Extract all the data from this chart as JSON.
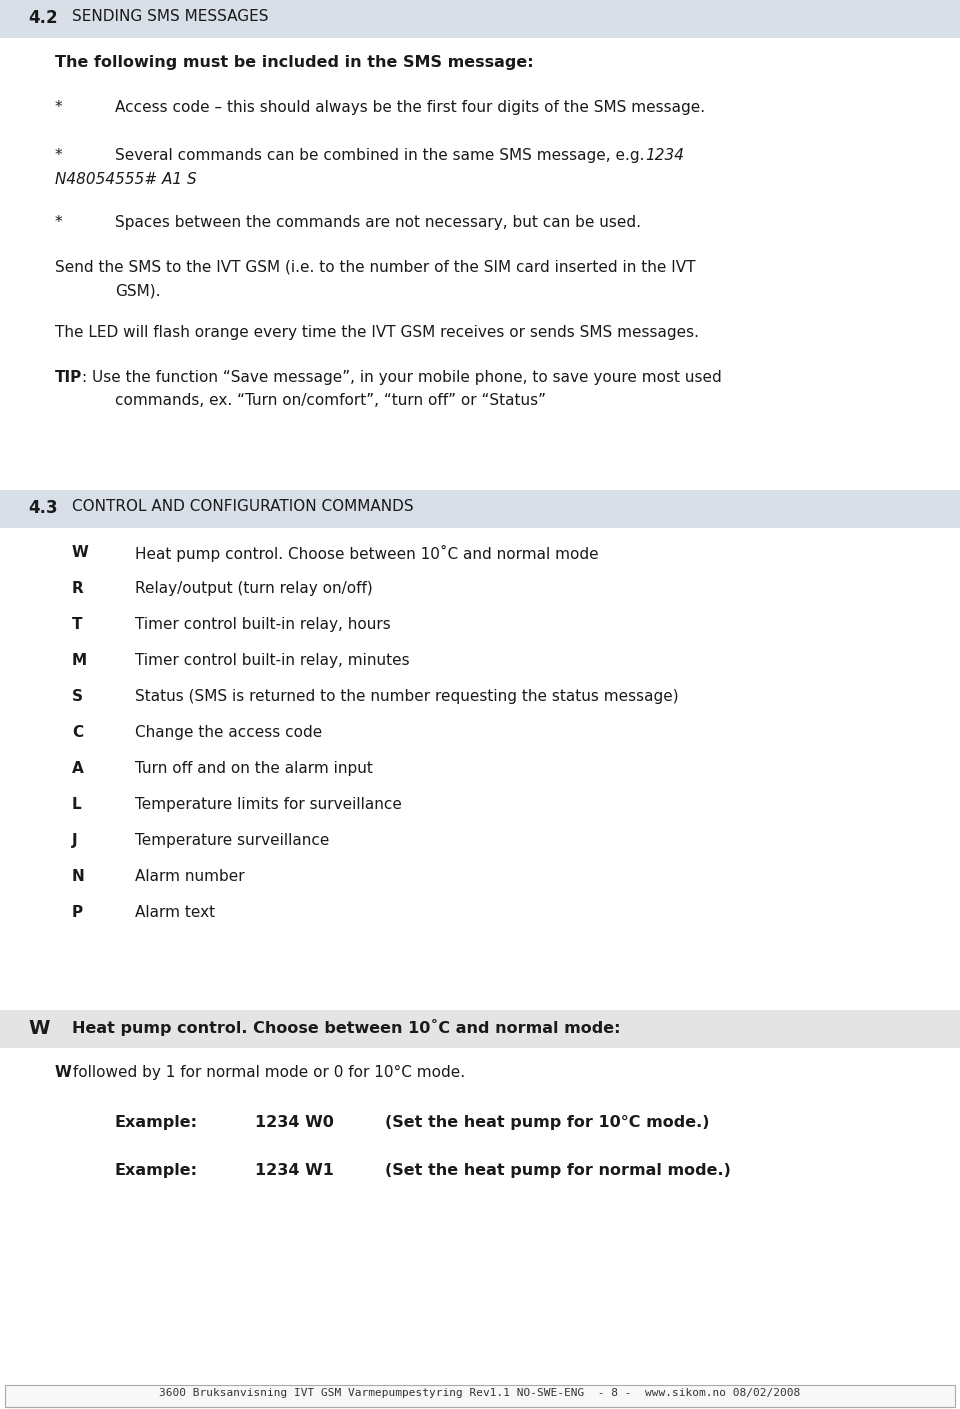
{
  "page_bg": "#ffffff",
  "header_bg": "#d8dfe8",
  "section_w_bg": "#e4e4e4",
  "footer_border": "#aaaaaa",
  "text_color": "#1a1a1a",
  "section42_number": "4.2",
  "section42_title": "SENDING SMS MESSAGES",
  "bold_line": "The following must be included in the SMS message:",
  "bullet1": "Access code – this should always be the first four digits of the SMS message.",
  "bullet2_line1": "Several commands can be combined in the same SMS message, e.g. ",
  "bullet2_italic": "1234",
  "bullet2_line2_italic": "N48054555# A1 S",
  "bullet3": "Spaces between the commands are not necessary, but can be used.",
  "para1_line1": "Send the SMS to the IVT GSM (i.e. to the number of the SIM card inserted in the IVT",
  "para1_line2": "GSM).",
  "para2": "The LED will flash orange every time the IVT GSM receives or sends SMS messages.",
  "tip_bold": "TIP",
  "tip_colon": ": Use the function “Save message”, in your mobile phone, to save youre most used",
  "tip_line2": "commands, ex. “Turn on/comfort”, “turn off” or “Status”",
  "section43_number": "4.3",
  "section43_title": "CONTROL AND CONFIGURATION COMMANDS",
  "commands": [
    [
      "W",
      "Heat pump control. Choose between 10˚C and normal mode"
    ],
    [
      "R",
      "Relay/output (turn relay on/off)"
    ],
    [
      "T",
      "Timer control built-in relay, hours"
    ],
    [
      "M",
      "Timer control built-in relay, minutes"
    ],
    [
      "S",
      "Status (SMS is returned to the number requesting the status message)"
    ],
    [
      "C",
      "Change the access code"
    ],
    [
      "A",
      "Turn off and on the alarm input"
    ],
    [
      "L",
      "Temperature limits for surveillance"
    ],
    [
      "J",
      "Temperature surveillance"
    ],
    [
      "N",
      "Alarm number"
    ],
    [
      "P",
      "Alarm text"
    ]
  ],
  "section_w_letter": "W",
  "section_w_heading": "Heat pump control. Choose between 10˚C and normal mode:",
  "w_desc_bold": "W",
  "w_desc_rest": " followed by 1 for normal mode or 0 for 10°C mode.",
  "ex1_label": "Example:",
  "ex1_cmd": "1234 W0",
  "ex1_desc": "(Set the heat pump for 10°C mode.)",
  "ex2_label": "Example:",
  "ex2_cmd": "1234 W1",
  "ex2_desc": "(Set the heat pump for normal mode.)",
  "footer_text": "3600 Bruksanvisning IVT GSM Varmepumpestyring Rev1.1 NO-SWE-ENG  - 8 -  www.sikom.no 08/02/2008"
}
